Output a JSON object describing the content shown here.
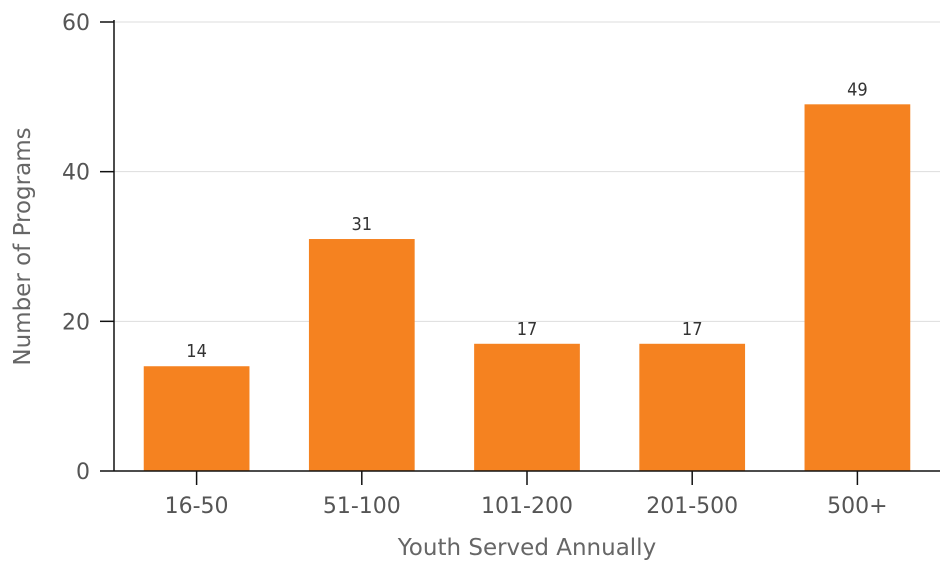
{
  "chart_data": {
    "type": "bar",
    "categories": [
      "16-50",
      "51-100",
      "101-200",
      "201-500",
      "500+"
    ],
    "values": [
      14,
      31,
      17,
      17,
      49
    ],
    "xlabel": "Youth Served Annually",
    "ylabel": "Number of Programs",
    "ylim": [
      0,
      60
    ],
    "yticks": [
      0,
      20,
      40,
      60
    ],
    "grid": true,
    "data_labels": true,
    "bar_color": "#f58220"
  }
}
